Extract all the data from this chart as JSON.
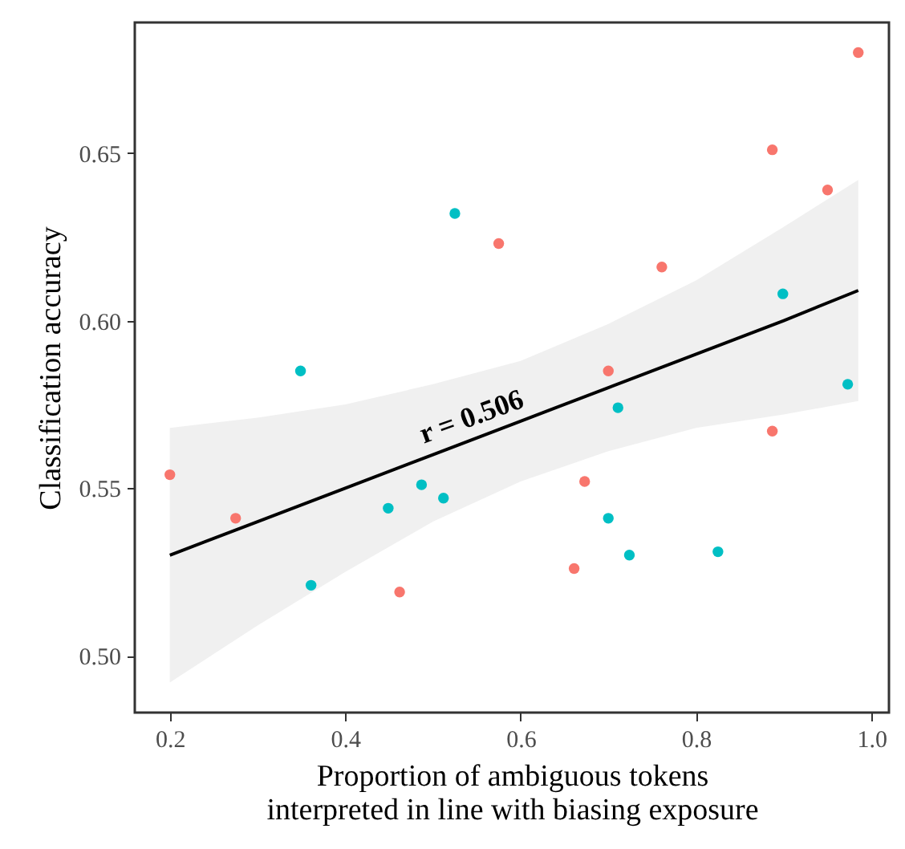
{
  "chart_data": {
    "type": "scatter",
    "xlabel": "Proportion of ambiguous tokens\ninterpreted in line with biasing exposure",
    "ylabel": "Classification accuracy",
    "xlim": [
      0.16,
      1.02
    ],
    "ylim": [
      0.483,
      0.689
    ],
    "xticks": [
      0.2,
      0.4,
      0.6,
      0.8,
      {
        "value": 1,
        "label": "1.0"
      }
    ],
    "yticks": [
      {
        "value": 0.5,
        "label": "0.50"
      },
      0.55,
      {
        "value": 0.6,
        "label": "0.60"
      },
      0.65
    ],
    "grid": false,
    "marker": "circle",
    "annotations": [
      {
        "text": "r = 0.506",
        "x": 0.55,
        "y": 0.567
      }
    ],
    "series": [
      {
        "color": "#f8766d",
        "x": [
          0.2,
          0.275,
          0.462,
          0.575,
          0.985,
          0.887,
          0.95,
          0.761,
          0.7,
          0.887,
          0.673,
          0.661
        ],
        "values": [
          0.554,
          0.541,
          0.519,
          0.623,
          0.68,
          0.651,
          0.639,
          0.616,
          0.585,
          0.567,
          0.552,
          0.526
        ]
      },
      {
        "color": "#00bfc4",
        "x": [
          0.525,
          0.349,
          0.487,
          0.512,
          0.449,
          0.361,
          0.899,
          0.973,
          0.711,
          0.7,
          0.724,
          0.825
        ],
        "values": [
          0.632,
          0.585,
          0.551,
          0.547,
          0.544,
          0.521,
          0.608,
          0.581,
          0.574,
          0.541,
          0.53,
          0.531
        ]
      },
      {
        "type": "line",
        "marker": "none",
        "color": "#000000",
        "x": [
          0.2,
          0.3,
          0.4,
          0.5,
          0.6,
          0.7,
          0.8,
          0.9,
          0.985
        ],
        "values": [
          0.53,
          0.54,
          0.55,
          0.56,
          0.57,
          0.58,
          0.59,
          0.6,
          0.609
        ],
        "lower": [
          0.492,
          0.509,
          0.525,
          0.54,
          0.552,
          0.561,
          0.568,
          0.572,
          0.576
        ],
        "upper": [
          0.568,
          0.571,
          0.575,
          0.581,
          0.588,
          0.599,
          0.612,
          0.628,
          0.642
        ]
      }
    ]
  }
}
